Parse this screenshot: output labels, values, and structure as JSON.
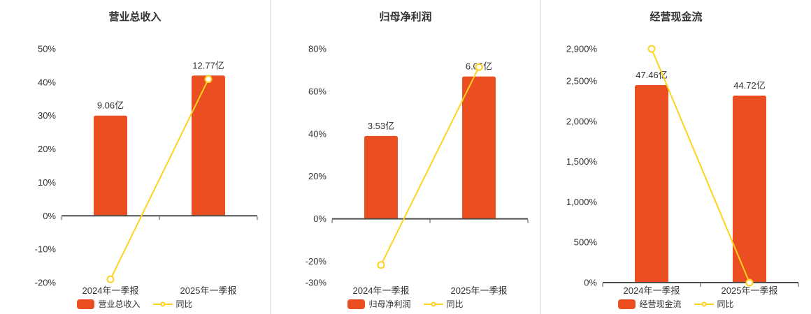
{
  "colors": {
    "bar": "#eb4f21",
    "line": "#ffd21e",
    "axis": "#4d4d4d",
    "text": "#333333",
    "divider": "#dddddd",
    "background": "#ffffff"
  },
  "chart_data": [
    {
      "type": "bar",
      "title": "营业总收入",
      "categories": [
        "2024年一季报",
        "2025年一季报"
      ],
      "ylim": [
        -20,
        50
      ],
      "yticks": [
        -20,
        -10,
        0,
        10,
        20,
        30,
        40,
        50
      ],
      "ytick_suffix": "%",
      "grid": false,
      "legend_position": "bottom",
      "series": [
        {
          "name": "营业总收入",
          "type": "bar",
          "unit": "亿",
          "values": [
            9.06,
            12.77
          ],
          "labels": [
            "9.06亿",
            "12.77亿"
          ],
          "bar_top_pct": [
            30,
            42
          ]
        },
        {
          "name": "同比",
          "type": "line",
          "unit": "%",
          "values": [
            -19,
            40.9
          ]
        }
      ]
    },
    {
      "type": "bar",
      "title": "归母净利润",
      "categories": [
        "2024年一季报",
        "2025年一季报"
      ],
      "ylim": [
        -30,
        80
      ],
      "yticks": [
        -30,
        -20,
        0,
        20,
        40,
        60,
        80
      ],
      "ytick_suffix": "%",
      "grid": false,
      "legend_position": "bottom",
      "series": [
        {
          "name": "归母净利润",
          "type": "bar",
          "unit": "亿",
          "values": [
            3.53,
            6.05
          ],
          "labels": [
            "3.53亿",
            "6.05亿"
          ],
          "bar_top_pct": [
            39,
            67
          ]
        },
        {
          "name": "同比",
          "type": "line",
          "unit": "%",
          "values": [
            -21.7,
            71.4
          ]
        }
      ]
    },
    {
      "type": "bar",
      "title": "经营现金流",
      "categories": [
        "2024年一季报",
        "2025年一季报"
      ],
      "ylim": [
        0,
        2900
      ],
      "yticks": [
        0,
        500,
        1000,
        1500,
        2000,
        2500,
        2900
      ],
      "ytick_suffix": "%",
      "grid": false,
      "legend_position": "bottom",
      "series": [
        {
          "name": "经营现金流",
          "type": "bar",
          "unit": "亿",
          "values": [
            47.46,
            44.72
          ],
          "labels": [
            "47.46亿",
            "44.72亿"
          ],
          "bar_top_pct": [
            2450,
            2320
          ]
        },
        {
          "name": "同比",
          "type": "line",
          "unit": "%",
          "values": [
            2900,
            0
          ]
        }
      ]
    }
  ]
}
